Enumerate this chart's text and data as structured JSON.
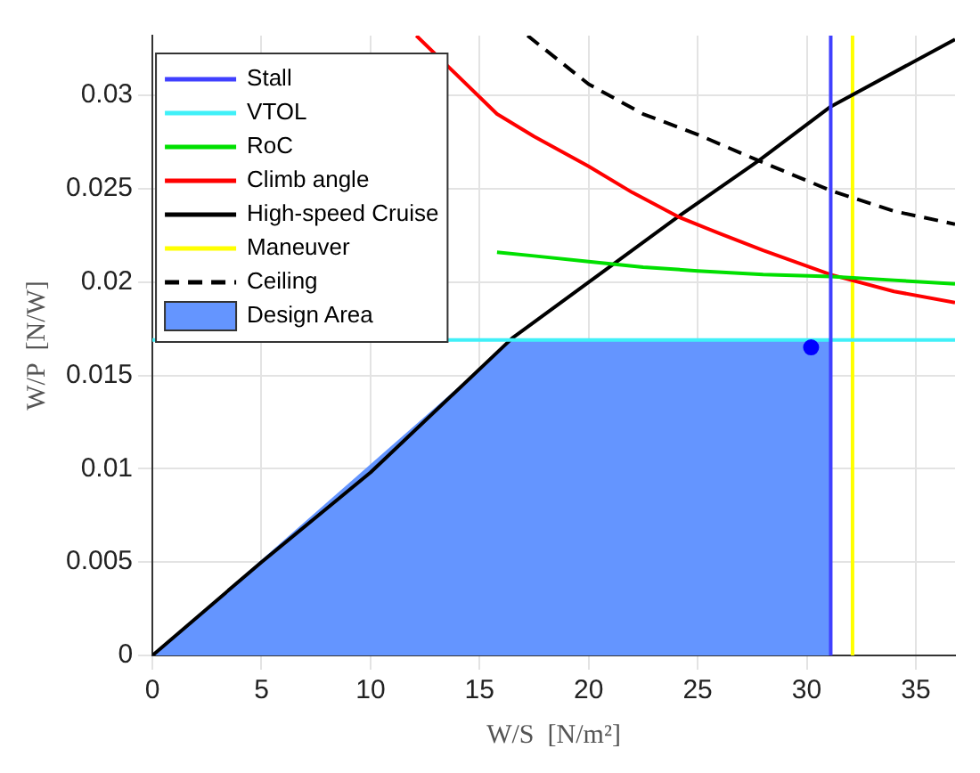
{
  "chart_data": {
    "type": "line",
    "xlabel": "W/S  [N/m²]",
    "ylabel": "W/P  [N/W]",
    "xlim": [
      0,
      36.8
    ],
    "ylim": [
      0,
      0.0332
    ],
    "xticks": [
      0,
      5,
      10,
      15,
      20,
      25,
      30,
      35
    ],
    "yticks": [
      0,
      0.005,
      0.01,
      0.015,
      0.02,
      0.025,
      0.03
    ],
    "grid": true,
    "legend": "top left",
    "marker": "none",
    "series": [
      {
        "name": "Stall",
        "color": "#4040ff",
        "x": [
          31.1,
          31.1
        ],
        "values": [
          0,
          0.0332
        ]
      },
      {
        "name": "VTOL",
        "color": "#40f0f8",
        "x": [
          0,
          36.8
        ],
        "values": [
          0.0169,
          0.0169
        ]
      },
      {
        "name": "RoC",
        "color": "#00e000",
        "x": [
          15.8,
          17.5,
          20,
          22.5,
          25,
          28,
          31.1,
          34,
          36.8
        ],
        "values": [
          0.0216,
          0.0214,
          0.0211,
          0.0208,
          0.0206,
          0.0204,
          0.0203,
          0.0201,
          0.0199
        ]
      },
      {
        "name": "Climb angle",
        "color": "#ff0000",
        "x": [
          12.1,
          15.8,
          17.5,
          20,
          22,
          24.1,
          26,
          28,
          31.1,
          34,
          36.8
        ],
        "values": [
          0.0332,
          0.029,
          0.0278,
          0.0262,
          0.0248,
          0.0235,
          0.0226,
          0.0217,
          0.0204,
          0.0195,
          0.0189
        ]
      },
      {
        "name": "High-speed Cruise",
        "color": "#000000",
        "x": [
          0,
          5,
          10,
          16.5,
          21.3,
          24.1,
          27.8,
          31.1,
          36.8
        ],
        "values": [
          0,
          0.005,
          0.0098,
          0.017,
          0.0211,
          0.0235,
          0.0265,
          0.0294,
          0.033
        ]
      },
      {
        "name": "Maneuver",
        "color": "#ffff00",
        "x": [
          32.1,
          32.1
        ],
        "values": [
          0,
          0.0332
        ]
      },
      {
        "name": "Ceiling",
        "color": "#000000",
        "line_style": "dashed",
        "x": [
          17.2,
          20,
          22.5,
          25,
          27.8,
          31.1,
          34,
          36.8
        ],
        "values": [
          0.0332,
          0.0306,
          0.029,
          0.0279,
          0.0265,
          0.0249,
          0.0238,
          0.0231
        ]
      },
      {
        "name": "Design Area",
        "type": "area",
        "color": "#6495ff",
        "x": [
          0,
          16.5,
          31.1
        ],
        "values": [
          0,
          0.0169,
          0.0169
        ]
      },
      {
        "type": "scatter",
        "color": "#0000ff",
        "marker": "circle",
        "x": [
          30.2
        ],
        "values": [
          0.0165
        ]
      }
    ]
  }
}
